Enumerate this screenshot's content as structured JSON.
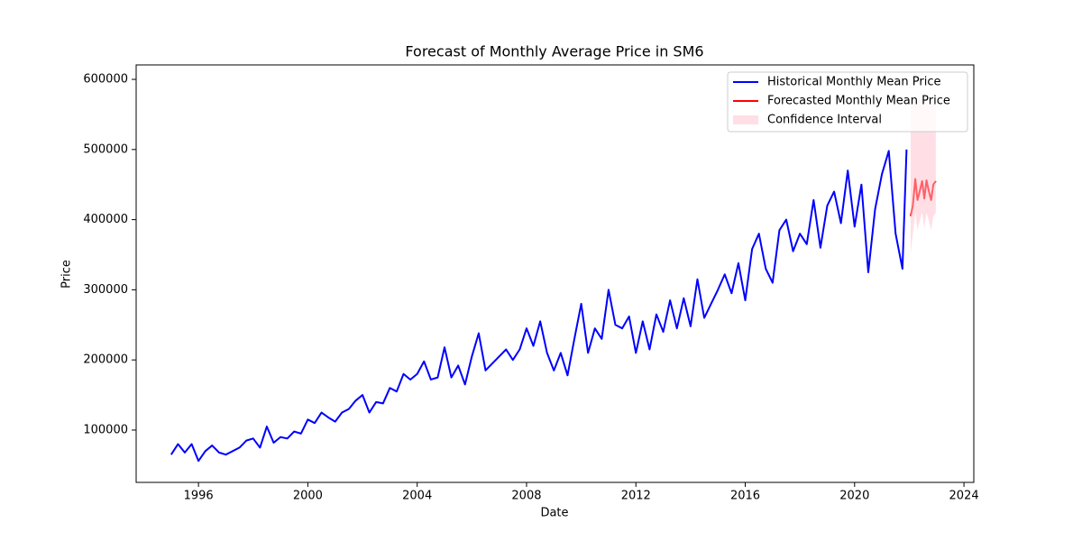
{
  "chart_data": {
    "type": "line",
    "title": "Forecast of Monthly Average Price in SM6",
    "x_label": "Date",
    "y_label": "Price",
    "xlim": [
      1993.72,
      2024.36
    ],
    "xticks": [
      1996,
      2000,
      2004,
      2008,
      2012,
      2016,
      2020,
      2024
    ],
    "ylim": [
      25400,
      620600
    ],
    "yticks": [
      100000,
      200000,
      300000,
      400000,
      500000,
      600000
    ],
    "legend": "upper right",
    "series": [
      {
        "name": "Historical Monthly Mean Price",
        "color": "#0000ff",
        "x": [
          1995.0,
          1995.25,
          1995.5,
          1995.75,
          1996.0,
          1996.25,
          1996.5,
          1996.75,
          1997.0,
          1997.25,
          1997.5,
          1997.75,
          1998.0,
          1998.25,
          1998.5,
          1998.75,
          1999.0,
          1999.25,
          1999.5,
          1999.75,
          2000.0,
          2000.25,
          2000.5,
          2000.75,
          2001.0,
          2001.25,
          2001.5,
          2001.75,
          2002.0,
          2002.25,
          2002.5,
          2002.75,
          2003.0,
          2003.25,
          2003.5,
          2003.75,
          2004.0,
          2004.25,
          2004.5,
          2004.75,
          2005.0,
          2005.25,
          2005.5,
          2005.75,
          2006.0,
          2006.25,
          2006.5,
          2006.75,
          2007.0,
          2007.25,
          2007.5,
          2007.75,
          2008.0,
          2008.25,
          2008.5,
          2008.75,
          2009.0,
          2009.25,
          2009.5,
          2009.75,
          2010.0,
          2010.25,
          2010.5,
          2010.75,
          2011.0,
          2011.25,
          2011.5,
          2011.75,
          2012.0,
          2012.25,
          2012.5,
          2012.75,
          2013.0,
          2013.25,
          2013.5,
          2013.75,
          2014.0,
          2014.25,
          2014.5,
          2014.75,
          2015.0,
          2015.25,
          2015.5,
          2015.75,
          2016.0,
          2016.25,
          2016.5,
          2016.75,
          2017.0,
          2017.25,
          2017.5,
          2017.75,
          2018.0,
          2018.25,
          2018.5,
          2018.75,
          2019.0,
          2019.25,
          2019.5,
          2019.75,
          2020.0,
          2020.25,
          2020.5,
          2020.75,
          2021.0,
          2021.25,
          2021.5,
          2021.75,
          2021.9
        ],
        "values": [
          65000,
          80000,
          68000,
          80000,
          56000,
          70000,
          78000,
          68000,
          65000,
          70000,
          75000,
          85000,
          88000,
          75000,
          105000,
          82000,
          90000,
          88000,
          98000,
          95000,
          115000,
          110000,
          125000,
          118000,
          112000,
          125000,
          130000,
          142000,
          150000,
          125000,
          140000,
          138000,
          160000,
          155000,
          180000,
          172000,
          180000,
          198000,
          172000,
          175000,
          218000,
          175000,
          192000,
          165000,
          205000,
          238000,
          185000,
          195000,
          205000,
          215000,
          200000,
          215000,
          245000,
          220000,
          255000,
          210000,
          185000,
          210000,
          178000,
          230000,
          280000,
          210000,
          245000,
          230000,
          300000,
          250000,
          245000,
          262000,
          210000,
          255000,
          215000,
          265000,
          240000,
          285000,
          245000,
          288000,
          248000,
          315000,
          260000,
          280000,
          300000,
          322000,
          295000,
          338000,
          285000,
          358000,
          380000,
          330000,
          310000,
          385000,
          400000,
          355000,
          380000,
          365000,
          428000,
          360000,
          420000,
          440000,
          395000,
          470000,
          390000,
          450000,
          325000,
          415000,
          465000,
          498000,
          380000,
          330000,
          500000
        ]
      },
      {
        "name": "Forecasted Monthly Mean Price",
        "color": "#ff0000",
        "x": [
          2022.05,
          2022.13,
          2022.22,
          2022.3,
          2022.38,
          2022.47,
          2022.55,
          2022.63,
          2022.72,
          2022.8,
          2022.88,
          2022.97
        ],
        "values": [
          405000,
          420000,
          458000,
          428000,
          440000,
          455000,
          430000,
          456000,
          440000,
          428000,
          450000,
          455000
        ]
      },
      {
        "name": "Confidence Interval",
        "color": "#ffc0cb",
        "x": [
          2022.05,
          2022.13,
          2022.22,
          2022.3,
          2022.38,
          2022.47,
          2022.55,
          2022.63,
          2022.72,
          2022.8,
          2022.88,
          2022.97
        ],
        "lower": [
          352000,
          380000,
          410000,
          385000,
          398000,
          410000,
          388000,
          410000,
          398000,
          385000,
          405000,
          410000
        ],
        "upper": [
          570000,
          570000,
          572000,
          570000,
          570000,
          572000,
          570000,
          572000,
          570000,
          570000,
          572000,
          572000
        ]
      }
    ]
  }
}
